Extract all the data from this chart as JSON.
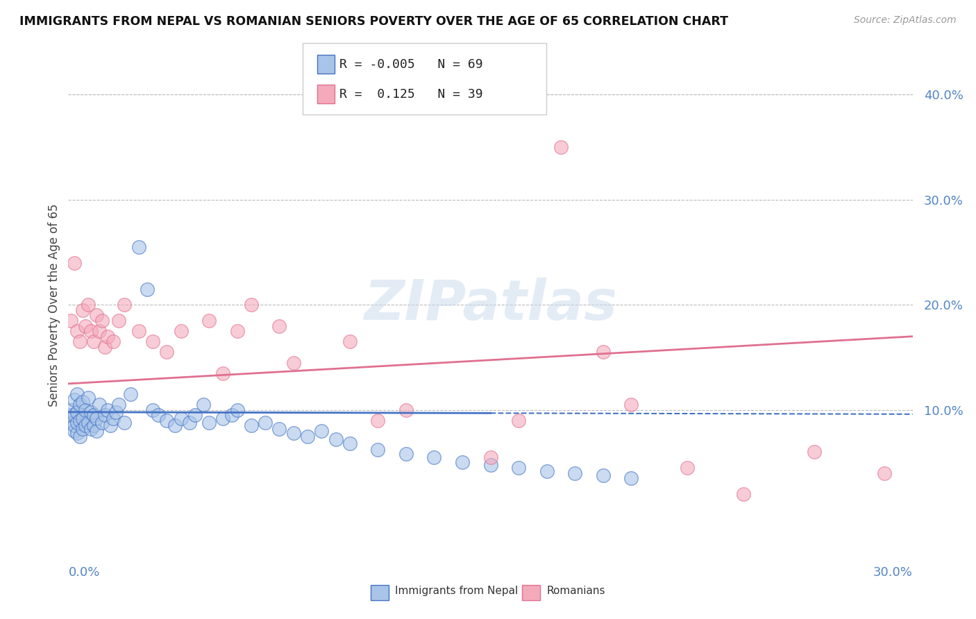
{
  "title": "IMMIGRANTS FROM NEPAL VS ROMANIAN SENIORS POVERTY OVER THE AGE OF 65 CORRELATION CHART",
  "source": "Source: ZipAtlas.com",
  "ylabel": "Seniors Poverty Over the Age of 65",
  "right_yticks": [
    0.1,
    0.2,
    0.3,
    0.4
  ],
  "right_ytick_labels": [
    "10.0%",
    "20.0%",
    "30.0%",
    "40.0%"
  ],
  "xlim": [
    0.0,
    0.3
  ],
  "ylim": [
    -0.04,
    0.44
  ],
  "legend1_r": "-0.005",
  "legend1_n": "69",
  "legend2_r": "0.125",
  "legend2_n": "39",
  "legend1_label": "Immigrants from Nepal",
  "legend2_label": "Romanians",
  "color_blue": "#A8C4E8",
  "color_pink": "#F4AABB",
  "trendline_blue": "#4472C4",
  "trendline_pink": "#E07090",
  "background_color": "#FFFFFF",
  "nepal_x": [
    0.001,
    0.001,
    0.001,
    0.002,
    0.002,
    0.002,
    0.002,
    0.003,
    0.003,
    0.003,
    0.003,
    0.004,
    0.004,
    0.004,
    0.005,
    0.005,
    0.005,
    0.006,
    0.006,
    0.007,
    0.007,
    0.008,
    0.008,
    0.009,
    0.009,
    0.01,
    0.01,
    0.011,
    0.012,
    0.013,
    0.014,
    0.015,
    0.016,
    0.017,
    0.018,
    0.02,
    0.022,
    0.025,
    0.028,
    0.03,
    0.032,
    0.035,
    0.038,
    0.04,
    0.043,
    0.045,
    0.048,
    0.05,
    0.055,
    0.058,
    0.06,
    0.065,
    0.07,
    0.075,
    0.08,
    0.085,
    0.09,
    0.095,
    0.1,
    0.11,
    0.12,
    0.13,
    0.14,
    0.15,
    0.16,
    0.17,
    0.18,
    0.19,
    0.2
  ],
  "nepal_y": [
    0.09,
    0.095,
    0.1,
    0.08,
    0.085,
    0.095,
    0.11,
    0.078,
    0.088,
    0.098,
    0.115,
    0.075,
    0.09,
    0.105,
    0.082,
    0.092,
    0.108,
    0.085,
    0.1,
    0.088,
    0.112,
    0.082,
    0.098,
    0.085,
    0.095,
    0.08,
    0.092,
    0.105,
    0.088,
    0.095,
    0.1,
    0.085,
    0.092,
    0.098,
    0.105,
    0.088,
    0.115,
    0.255,
    0.215,
    0.1,
    0.095,
    0.09,
    0.085,
    0.092,
    0.088,
    0.095,
    0.105,
    0.088,
    0.092,
    0.095,
    0.1,
    0.085,
    0.088,
    0.082,
    0.078,
    0.075,
    0.08,
    0.072,
    0.068,
    0.062,
    0.058,
    0.055,
    0.05,
    0.048,
    0.045,
    0.042,
    0.04,
    0.038,
    0.035
  ],
  "romanian_x": [
    0.001,
    0.002,
    0.003,
    0.004,
    0.005,
    0.006,
    0.007,
    0.008,
    0.009,
    0.01,
    0.011,
    0.012,
    0.013,
    0.014,
    0.016,
    0.018,
    0.02,
    0.025,
    0.03,
    0.035,
    0.04,
    0.05,
    0.055,
    0.06,
    0.065,
    0.075,
    0.08,
    0.1,
    0.11,
    0.12,
    0.15,
    0.16,
    0.175,
    0.19,
    0.2,
    0.22,
    0.24,
    0.265,
    0.29
  ],
  "romanian_y": [
    0.185,
    0.24,
    0.175,
    0.165,
    0.195,
    0.18,
    0.2,
    0.175,
    0.165,
    0.19,
    0.175,
    0.185,
    0.16,
    0.17,
    0.165,
    0.185,
    0.2,
    0.175,
    0.165,
    0.155,
    0.175,
    0.185,
    0.135,
    0.175,
    0.2,
    0.18,
    0.145,
    0.165,
    0.09,
    0.1,
    0.055,
    0.09,
    0.35,
    0.155,
    0.105,
    0.045,
    0.02,
    0.06,
    0.04
  ],
  "nepal_trendline_x": [
    0.0,
    0.15,
    0.3
  ],
  "nepal_trendline_y_solid_end": 0.15,
  "nepal_trendline_y": [
    0.098,
    0.097,
    0.096
  ],
  "romanian_trendline_x": [
    0.0,
    0.3
  ],
  "romanian_trendline_y": [
    0.125,
    0.17
  ]
}
